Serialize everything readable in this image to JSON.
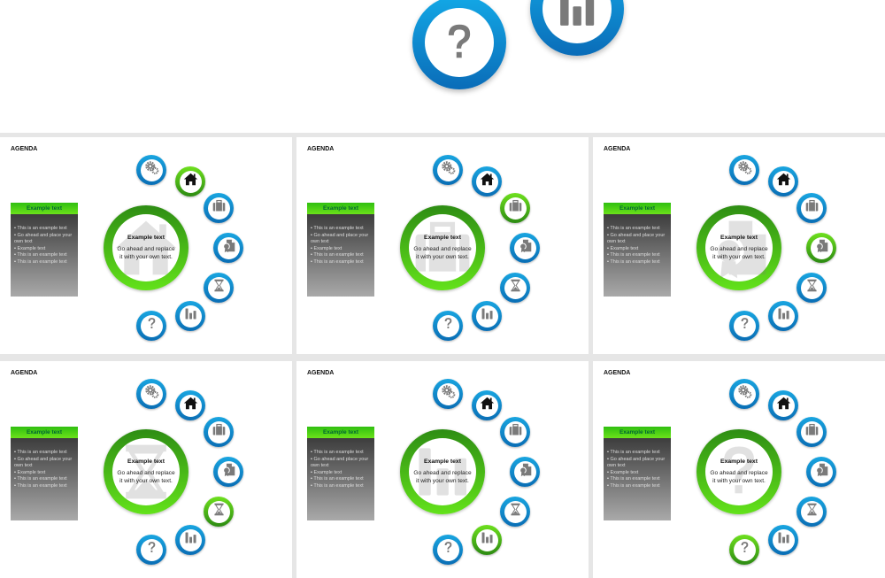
{
  "colors": {
    "accent_blue": "#0a8fd6",
    "accent_green": "#4cc418",
    "icon_gray": "#7a7a7a"
  },
  "preview": {
    "icons": [
      "question-icon",
      "bar-chart-icon"
    ]
  },
  "icons": [
    "gears-icon",
    "home-icon",
    "briefcase-icon",
    "certificate-icon",
    "hourglass-icon",
    "bar-chart-icon",
    "question-icon"
  ],
  "slides": [
    {
      "agenda": "AGENDA",
      "box_title": "Example text",
      "bullets": [
        " This is an example text",
        "Go ahead and place your    own text",
        "Example text",
        "This is an example text",
        "This is an example text"
      ],
      "center_title": "Example text",
      "center_body": "Go ahead and replace it with your own text.",
      "active_icon": "home-icon",
      "watermark": "home-icon"
    },
    {
      "agenda": "AGENDA",
      "box_title": "Example text",
      "bullets": [
        " This is an example text",
        "Go ahead and place your    own text",
        "Example text",
        "This is an example text",
        "This is an example text"
      ],
      "center_title": "Example text",
      "center_body": "Go ahead and replace it with your own text.",
      "active_icon": "briefcase-icon",
      "watermark": "briefcase-icon"
    },
    {
      "agenda": "AGENDA",
      "box_title": "Example text",
      "bullets": [
        " This is an example text",
        "Go ahead and place your    own text",
        "Example text",
        "This is an example text",
        "This is an example text"
      ],
      "center_title": "Example text",
      "center_body": "Go ahead and replace it with your own text.",
      "active_icon": "certificate-icon",
      "watermark": "certificate-icon"
    },
    {
      "agenda": "AGENDA",
      "box_title": "Example text",
      "bullets": [
        " This is an example text",
        "Go ahead and place your    own text",
        "Example text",
        "This is an example text",
        "This is an example text"
      ],
      "center_title": "Example text",
      "center_body": "Go ahead and replace it with your own text.",
      "active_icon": "hourglass-icon",
      "watermark": "hourglass-icon"
    },
    {
      "agenda": "AGENDA",
      "box_title": "Example text",
      "bullets": [
        " This is an example text",
        "Go ahead and place your    own text",
        "Example text",
        "This is an example text",
        "This is an example text"
      ],
      "center_title": "Example text",
      "center_body": "Go ahead and replace it with your own text.",
      "active_icon": "bar-chart-icon",
      "watermark": "bar-chart-icon"
    },
    {
      "agenda": "AGENDA",
      "box_title": "Example text",
      "bullets": [
        " This is an example text",
        "Go ahead and place your    own text",
        "Example text",
        "This is an example text",
        "This is an example text"
      ],
      "center_title": "Example text",
      "center_body": "Go ahead and replace it with your own text.",
      "active_icon": "question-icon",
      "watermark": "question-icon"
    }
  ]
}
